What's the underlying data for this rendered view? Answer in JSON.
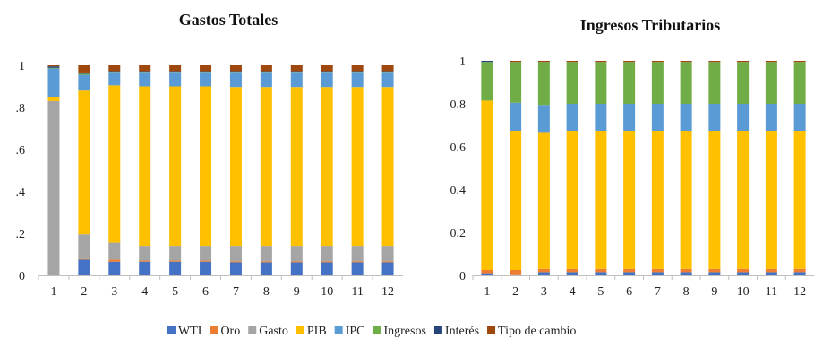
{
  "colors": {
    "WTI": "#4472c4",
    "Oro": "#ed7d31",
    "Gasto": "#a5a5a5",
    "PIB": "#ffc000",
    "IPC": "#5b9bd5",
    "Ingresos": "#70ad47",
    "Interés": "#264478",
    "Tipo de cambio": "#9e480e"
  },
  "legend": [
    "WTI",
    "Oro",
    "Gasto",
    "PIB",
    "IPC",
    "Ingresos",
    "Interés",
    "Tipo de cambio"
  ],
  "chart_data": [
    {
      "type": "bar",
      "stacked": true,
      "title": "Gastos Totales",
      "categories": [
        "1",
        "2",
        "3",
        "4",
        "5",
        "6",
        "7",
        "8",
        "9",
        "10",
        "11",
        "12"
      ],
      "ylim": [
        0,
        1
      ],
      "yticks": [
        "0",
        ".2",
        ".4",
        ".6",
        ".8",
        "1"
      ],
      "series": [
        {
          "name": "WTI",
          "values": [
            0.0,
            0.075,
            0.065,
            0.065,
            0.065,
            0.065,
            0.062,
            0.062,
            0.062,
            0.062,
            0.062,
            0.062
          ]
        },
        {
          "name": "Oro",
          "values": [
            0.0,
            0.003,
            0.01,
            0.005,
            0.005,
            0.005,
            0.005,
            0.005,
            0.005,
            0.005,
            0.005,
            0.005
          ]
        },
        {
          "name": "Gasto",
          "values": [
            0.83,
            0.117,
            0.08,
            0.07,
            0.07,
            0.07,
            0.073,
            0.073,
            0.073,
            0.073,
            0.073,
            0.073
          ]
        },
        {
          "name": "PIB",
          "values": [
            0.02,
            0.685,
            0.75,
            0.76,
            0.76,
            0.76,
            0.757,
            0.757,
            0.757,
            0.757,
            0.757,
            0.757
          ]
        },
        {
          "name": "IPC",
          "values": [
            0.135,
            0.075,
            0.06,
            0.065,
            0.065,
            0.065,
            0.068,
            0.068,
            0.068,
            0.068,
            0.068,
            0.068
          ]
        },
        {
          "name": "Ingresos",
          "values": [
            0.003,
            0.005,
            0.005,
            0.005,
            0.005,
            0.005,
            0.005,
            0.005,
            0.005,
            0.005,
            0.005,
            0.005
          ]
        },
        {
          "name": "Interés",
          "values": [
            0.007,
            0.002,
            0.002,
            0.002,
            0.002,
            0.002,
            0.002,
            0.002,
            0.002,
            0.002,
            0.002,
            0.002
          ]
        },
        {
          "name": "Tipo de cambio",
          "values": [
            0.005,
            0.038,
            0.028,
            0.028,
            0.028,
            0.028,
            0.028,
            0.028,
            0.028,
            0.028,
            0.028,
            0.028
          ]
        }
      ]
    },
    {
      "type": "bar",
      "stacked": true,
      "title": "Ingresos Tributarios",
      "categories": [
        "1",
        "2",
        "3",
        "4",
        "5",
        "6",
        "7",
        "8",
        "9",
        "10",
        "11",
        "12"
      ],
      "ylim": [
        0,
        1
      ],
      "yticks": [
        "0",
        "0.2",
        "0.4",
        "0.6",
        "0.8",
        "1"
      ],
      "series": [
        {
          "name": "WTI",
          "values": [
            0.01,
            0.005,
            0.015,
            0.015,
            0.015,
            0.015,
            0.015,
            0.015,
            0.015,
            0.015,
            0.015,
            0.015
          ]
        },
        {
          "name": "Oro",
          "values": [
            0.015,
            0.02,
            0.015,
            0.015,
            0.015,
            0.015,
            0.015,
            0.015,
            0.015,
            0.015,
            0.015,
            0.015
          ]
        },
        {
          "name": "Gasto",
          "values": [
            0.0,
            0.0,
            0.0,
            0.0,
            0.0,
            0.0,
            0.0,
            0.0,
            0.0,
            0.0,
            0.0,
            0.0
          ]
        },
        {
          "name": "PIB",
          "values": [
            0.79,
            0.65,
            0.635,
            0.645,
            0.645,
            0.645,
            0.645,
            0.645,
            0.645,
            0.645,
            0.645,
            0.645
          ]
        },
        {
          "name": "IPC",
          "values": [
            0.0,
            0.13,
            0.13,
            0.125,
            0.125,
            0.125,
            0.125,
            0.125,
            0.125,
            0.125,
            0.125,
            0.125
          ]
        },
        {
          "name": "Ingresos",
          "values": [
            0.18,
            0.19,
            0.2,
            0.195,
            0.195,
            0.195,
            0.195,
            0.195,
            0.195,
            0.195,
            0.195,
            0.195
          ]
        },
        {
          "name": "Interés",
          "values": [
            0.005,
            0.0,
            0.0,
            0.0,
            0.0,
            0.0,
            0.0,
            0.0,
            0.0,
            0.0,
            0.0,
            0.0
          ]
        },
        {
          "name": "Tipo de cambio",
          "values": [
            0.0,
            0.005,
            0.005,
            0.005,
            0.005,
            0.005,
            0.005,
            0.005,
            0.005,
            0.005,
            0.005,
            0.005
          ]
        }
      ]
    }
  ]
}
